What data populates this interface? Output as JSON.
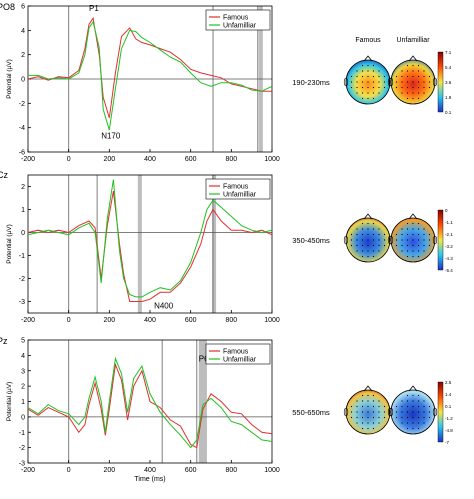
{
  "colors": {
    "famous": "#e03030",
    "unfamiliar": "#22c022",
    "marker": "#7f7f7f",
    "shade": "#bdbdbd"
  },
  "maps": {
    "col_famous": "Famous",
    "col_unfamiliar": "Unfamilliar",
    "rows": [
      {
        "label": "190-230ms",
        "colorbar_ticks": [
          "7.1",
          "5.4",
          "3.6",
          "1.9",
          "0.1"
        ]
      },
      {
        "label": "350-450ms",
        "colorbar_ticks": [
          "0",
          "-1.1",
          "-2.1",
          "-3.2",
          "-4.3",
          "-5.4"
        ]
      },
      {
        "label": "550-650ms",
        "colorbar_ticks": [
          "2.5",
          "1.4",
          "0.1",
          "-1.2",
          "-4.8",
          "-7"
        ]
      }
    ]
  },
  "chart_data": [
    {
      "type": "line",
      "panel_label": "PO8",
      "ylabel": "Potential (µV)",
      "xlabel": "",
      "xlim": [
        -200,
        1000
      ],
      "ylim": [
        -6,
        6
      ],
      "xticks": [
        "-200",
        "0",
        "200",
        "400",
        "600",
        "800",
        "1000"
      ],
      "yticks": [
        "6",
        "4",
        "2",
        "0",
        "-2",
        "-4",
        "-6"
      ],
      "markers": [
        0,
        710,
        930
      ],
      "shaded": [
        [
          935,
          955
        ]
      ],
      "legend": [
        "Famous",
        "Unfamilliar"
      ],
      "annotations": [
        {
          "text": "P1",
          "x": 100,
          "y": 5.6
        },
        {
          "text": "N170",
          "x": 160,
          "y": -4.9
        }
      ],
      "x": [
        -200,
        -150,
        -100,
        -50,
        0,
        50,
        80,
        100,
        120,
        150,
        170,
        200,
        230,
        260,
        300,
        330,
        360,
        400,
        450,
        500,
        550,
        600,
        650,
        700,
        750,
        800,
        850,
        900,
        950,
        1000
      ],
      "series": [
        {
          "name": "Famous",
          "values": [
            0,
            0.2,
            -0.1,
            0.2,
            0.1,
            0.7,
            2.5,
            4.5,
            5.0,
            2.0,
            -1.5,
            -3.2,
            0.5,
            3.5,
            4.2,
            3.3,
            3.0,
            2.8,
            2.5,
            2.2,
            1.6,
            0.8,
            0.5,
            0.3,
            0.1,
            -0.4,
            -0.6,
            -0.8,
            -1.0,
            -1.0
          ]
        },
        {
          "name": "Unfamilliar",
          "values": [
            0.3,
            0.3,
            0.0,
            0.1,
            0.0,
            0.5,
            2.0,
            4.2,
            4.7,
            2.6,
            -2.5,
            -4.2,
            -0.8,
            2.5,
            4.0,
            3.9,
            3.4,
            3.0,
            2.4,
            1.8,
            1.4,
            0.5,
            -0.3,
            -0.6,
            -0.3,
            -0.3,
            -0.5,
            -0.9,
            -1.0,
            -0.6
          ]
        }
      ]
    },
    {
      "type": "line",
      "panel_label": "Cz",
      "ylabel": "Potential (µV)",
      "xlabel": "",
      "xlim": [
        -200,
        1000
      ],
      "ylim": [
        -3.5,
        2.5
      ],
      "xticks": [
        "-200",
        "0",
        "200",
        "400",
        "600",
        "800",
        "1000"
      ],
      "yticks": [
        "2",
        "1",
        "0",
        "-1",
        "-2",
        "-3"
      ],
      "markers": [
        0,
        140,
        710
      ],
      "shaded": [
        [
          340,
          360
        ],
        [
          705,
          725
        ]
      ],
      "legend": [
        "Famous",
        "Unfamilliar"
      ],
      "annotations": [
        {
          "text": "N400",
          "x": 420,
          "y": -3.3
        }
      ],
      "x": [
        -200,
        -150,
        -100,
        -50,
        0,
        50,
        100,
        130,
        160,
        190,
        220,
        250,
        270,
        300,
        330,
        360,
        400,
        450,
        500,
        550,
        600,
        650,
        680,
        710,
        750,
        800,
        850,
        900,
        950,
        1000
      ],
      "series": [
        {
          "name": "Famous",
          "values": [
            0,
            0.1,
            0.0,
            0.1,
            0.0,
            0.3,
            0.5,
            0.2,
            -2.0,
            0.3,
            1.8,
            -0.5,
            -1.8,
            -3.0,
            -3.0,
            -3.0,
            -2.9,
            -2.6,
            -2.6,
            -2.2,
            -1.5,
            -0.5,
            0.5,
            1.0,
            0.5,
            0.1,
            0.1,
            0.0,
            0.1,
            -0.1
          ]
        },
        {
          "name": "Unfamilliar",
          "values": [
            -0.1,
            0.0,
            0.1,
            0.0,
            -0.1,
            0.2,
            0.4,
            0.0,
            -2.2,
            0.6,
            2.3,
            -0.8,
            -2.0,
            -2.7,
            -2.8,
            -2.8,
            -2.6,
            -2.4,
            -2.5,
            -2.1,
            -1.3,
            0.0,
            1.0,
            1.4,
            1.1,
            0.7,
            0.3,
            0.1,
            0.0,
            0.1
          ]
        }
      ]
    },
    {
      "type": "line",
      "panel_label": "Pz",
      "ylabel": "Potential (µV)",
      "xlabel": "Time (ms)",
      "xlim": [
        -200,
        1000
      ],
      "ylim": [
        -3,
        5
      ],
      "xticks": [
        "-200",
        "0",
        "200",
        "400",
        "600",
        "800",
        "1000"
      ],
      "yticks": [
        "5",
        "4",
        "3",
        "2",
        "1",
        "0",
        "-1",
        "-2",
        "-3"
      ],
      "markers": [
        0,
        460,
        630
      ],
      "shaded": [
        [
          640,
          680
        ]
      ],
      "legend": [
        "Famous",
        "Unfamilliar"
      ],
      "annotations": [
        {
          "text": "P600",
          "x": 640,
          "y": 3.6
        }
      ],
      "x": [
        -200,
        -150,
        -100,
        -50,
        0,
        50,
        80,
        100,
        130,
        160,
        180,
        200,
        230,
        260,
        290,
        320,
        360,
        400,
        450,
        500,
        550,
        600,
        630,
        660,
        700,
        750,
        800,
        850,
        900,
        950,
        1000
      ],
      "series": [
        {
          "name": "Famous",
          "values": [
            0.5,
            0.1,
            0.6,
            0.3,
            0.0,
            -1.0,
            -0.5,
            0.8,
            2.2,
            0.5,
            -1.2,
            0.5,
            3.4,
            2.4,
            -0.2,
            2.0,
            3.0,
            1.0,
            0.6,
            -0.2,
            -0.6,
            -1.8,
            -2.0,
            0.5,
            1.5,
            1.0,
            0.3,
            0.2,
            -0.5,
            -1.0,
            -1.1
          ]
        },
        {
          "name": "Unfamilliar",
          "values": [
            0.6,
            0.2,
            0.8,
            0.4,
            0.2,
            -0.5,
            0.0,
            1.2,
            2.6,
            1.0,
            -1.0,
            1.0,
            3.8,
            2.8,
            0.3,
            2.5,
            3.3,
            1.5,
            0.3,
            -0.5,
            -1.2,
            -2.0,
            -1.5,
            0.8,
            1.2,
            0.6,
            -0.3,
            -0.5,
            -1.0,
            -1.5,
            -1.6
          ]
        }
      ]
    }
  ]
}
